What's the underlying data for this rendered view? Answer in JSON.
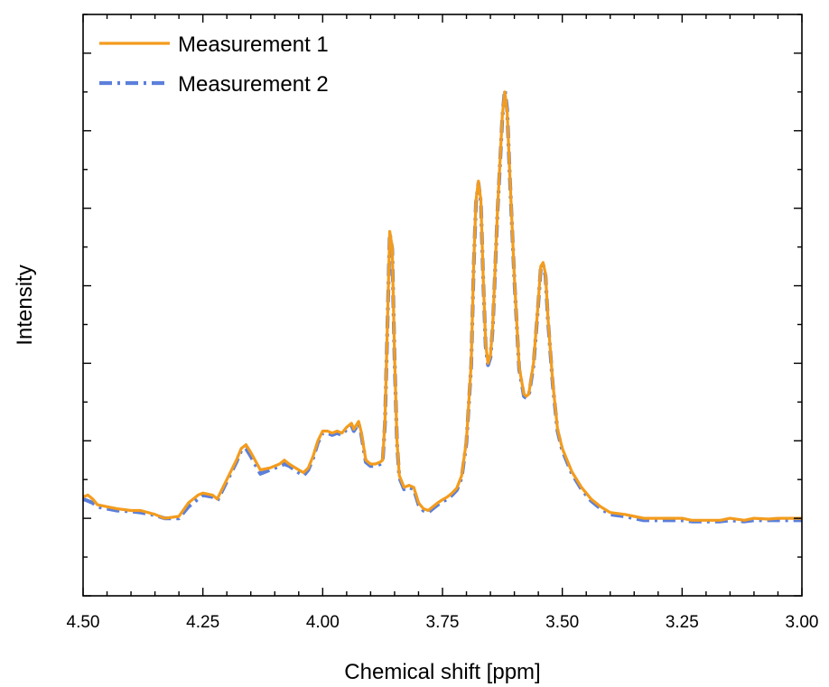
{
  "chart_data": {
    "type": "line",
    "title": "",
    "xlabel": "Chemical shift [ppm]",
    "ylabel": "Intensity",
    "xlim": [
      4.5,
      3.0
    ],
    "x_reversed": true,
    "ylim": [
      -0.2,
      1.3
    ],
    "x_ticks": [
      "4.50",
      "4.25",
      "4.00",
      "3.75",
      "3.50",
      "3.25",
      "3.00"
    ],
    "y_tick_labels_shown": false,
    "grid": false,
    "legend_position": "top-left",
    "series": [
      {
        "name": "Measurement 1",
        "color": "#f39c1e",
        "style": "solid",
        "points": [
          [
            4.5,
            0.055
          ],
          [
            4.49,
            0.06
          ],
          [
            4.48,
            0.05
          ],
          [
            4.47,
            0.035
          ],
          [
            4.45,
            0.03
          ],
          [
            4.43,
            0.025
          ],
          [
            4.4,
            0.02
          ],
          [
            4.38,
            0.02
          ],
          [
            4.35,
            0.01
          ],
          [
            4.33,
            0.0
          ],
          [
            4.3,
            0.005
          ],
          [
            4.28,
            0.04
          ],
          [
            4.26,
            0.06
          ],
          [
            4.25,
            0.065
          ],
          [
            4.23,
            0.06
          ],
          [
            4.22,
            0.05
          ],
          [
            4.2,
            0.1
          ],
          [
            4.18,
            0.15
          ],
          [
            4.17,
            0.18
          ],
          [
            4.16,
            0.19
          ],
          [
            4.15,
            0.17
          ],
          [
            4.13,
            0.125
          ],
          [
            4.11,
            0.13
          ],
          [
            4.09,
            0.14
          ],
          [
            4.08,
            0.15
          ],
          [
            4.07,
            0.14
          ],
          [
            4.05,
            0.125
          ],
          [
            4.04,
            0.118
          ],
          [
            4.03,
            0.13
          ],
          [
            4.02,
            0.16
          ],
          [
            4.01,
            0.2
          ],
          [
            4.0,
            0.225
          ],
          [
            3.99,
            0.225
          ],
          [
            3.98,
            0.22
          ],
          [
            3.97,
            0.225
          ],
          [
            3.96,
            0.22
          ],
          [
            3.95,
            0.235
          ],
          [
            3.94,
            0.245
          ],
          [
            3.935,
            0.23
          ],
          [
            3.925,
            0.25
          ],
          [
            3.92,
            0.225
          ],
          [
            3.91,
            0.15
          ],
          [
            3.9,
            0.14
          ],
          [
            3.89,
            0.14
          ],
          [
            3.88,
            0.145
          ],
          [
            3.875,
            0.15
          ],
          [
            3.87,
            0.25
          ],
          [
            3.865,
            0.5
          ],
          [
            3.86,
            0.74
          ],
          [
            3.855,
            0.7
          ],
          [
            3.85,
            0.42
          ],
          [
            3.845,
            0.2
          ],
          [
            3.84,
            0.11
          ],
          [
            3.83,
            0.08
          ],
          [
            3.82,
            0.085
          ],
          [
            3.81,
            0.08
          ],
          [
            3.8,
            0.04
          ],
          [
            3.79,
            0.025
          ],
          [
            3.78,
            0.02
          ],
          [
            3.77,
            0.03
          ],
          [
            3.76,
            0.04
          ],
          [
            3.75,
            0.048
          ],
          [
            3.74,
            0.055
          ],
          [
            3.73,
            0.065
          ],
          [
            3.72,
            0.078
          ],
          [
            3.71,
            0.11
          ],
          [
            3.7,
            0.2
          ],
          [
            3.69,
            0.4
          ],
          [
            3.685,
            0.65
          ],
          [
            3.68,
            0.82
          ],
          [
            3.675,
            0.87
          ],
          [
            3.67,
            0.82
          ],
          [
            3.665,
            0.62
          ],
          [
            3.66,
            0.45
          ],
          [
            3.655,
            0.4
          ],
          [
            3.65,
            0.42
          ],
          [
            3.645,
            0.5
          ],
          [
            3.64,
            0.65
          ],
          [
            3.635,
            0.8
          ],
          [
            3.63,
            0.92
          ],
          [
            3.625,
            1.04
          ],
          [
            3.62,
            1.1
          ],
          [
            3.615,
            1.05
          ],
          [
            3.61,
            0.9
          ],
          [
            3.6,
            0.62
          ],
          [
            3.59,
            0.39
          ],
          [
            3.58,
            0.32
          ],
          [
            3.575,
            0.315
          ],
          [
            3.57,
            0.32
          ],
          [
            3.56,
            0.4
          ],
          [
            3.55,
            0.56
          ],
          [
            3.545,
            0.65
          ],
          [
            3.54,
            0.66
          ],
          [
            3.535,
            0.63
          ],
          [
            3.53,
            0.52
          ],
          [
            3.52,
            0.35
          ],
          [
            3.51,
            0.23
          ],
          [
            3.5,
            0.18
          ],
          [
            3.48,
            0.12
          ],
          [
            3.46,
            0.08
          ],
          [
            3.44,
            0.05
          ],
          [
            3.42,
            0.03
          ],
          [
            3.4,
            0.015
          ],
          [
            3.37,
            0.01
          ],
          [
            3.35,
            0.005
          ],
          [
            3.33,
            0.0
          ],
          [
            3.3,
            0.0
          ],
          [
            3.27,
            0.0
          ],
          [
            3.25,
            0.0
          ],
          [
            3.23,
            -0.005
          ],
          [
            3.2,
            -0.005
          ],
          [
            3.17,
            -0.005
          ],
          [
            3.15,
            0.0
          ],
          [
            3.12,
            -0.005
          ],
          [
            3.1,
            0.0
          ],
          [
            3.07,
            -0.002
          ],
          [
            3.05,
            0.0
          ],
          [
            3.03,
            0.0
          ],
          [
            3.0,
            0.0
          ]
        ]
      },
      {
        "name": "Measurement 2",
        "color": "#5b7fdb",
        "style": "dash-dot",
        "points": [
          [
            4.5,
            0.05
          ],
          [
            4.49,
            0.045
          ],
          [
            4.48,
            0.04
          ],
          [
            4.47,
            0.03
          ],
          [
            4.45,
            0.025
          ],
          [
            4.43,
            0.02
          ],
          [
            4.4,
            0.018
          ],
          [
            4.38,
            0.015
          ],
          [
            4.35,
            0.008
          ],
          [
            4.33,
            0.0
          ],
          [
            4.3,
            0.0
          ],
          [
            4.28,
            0.03
          ],
          [
            4.26,
            0.05
          ],
          [
            4.25,
            0.06
          ],
          [
            4.23,
            0.055
          ],
          [
            4.22,
            0.045
          ],
          [
            4.2,
            0.095
          ],
          [
            4.18,
            0.145
          ],
          [
            4.17,
            0.175
          ],
          [
            4.16,
            0.18
          ],
          [
            4.15,
            0.16
          ],
          [
            4.13,
            0.115
          ],
          [
            4.11,
            0.125
          ],
          [
            4.09,
            0.135
          ],
          [
            4.08,
            0.14
          ],
          [
            4.07,
            0.135
          ],
          [
            4.05,
            0.118
          ],
          [
            4.04,
            0.11
          ],
          [
            4.03,
            0.125
          ],
          [
            4.02,
            0.155
          ],
          [
            4.01,
            0.195
          ],
          [
            4.0,
            0.22
          ],
          [
            3.99,
            0.22
          ],
          [
            3.98,
            0.215
          ],
          [
            3.97,
            0.22
          ],
          [
            3.96,
            0.215
          ],
          [
            3.95,
            0.23
          ],
          [
            3.94,
            0.24
          ],
          [
            3.935,
            0.225
          ],
          [
            3.925,
            0.245
          ],
          [
            3.92,
            0.22
          ],
          [
            3.91,
            0.145
          ],
          [
            3.9,
            0.135
          ],
          [
            3.89,
            0.135
          ],
          [
            3.88,
            0.14
          ],
          [
            3.875,
            0.145
          ],
          [
            3.87,
            0.245
          ],
          [
            3.865,
            0.495
          ],
          [
            3.86,
            0.735
          ],
          [
            3.855,
            0.695
          ],
          [
            3.85,
            0.415
          ],
          [
            3.845,
            0.195
          ],
          [
            3.84,
            0.105
          ],
          [
            3.83,
            0.075
          ],
          [
            3.82,
            0.08
          ],
          [
            3.81,
            0.075
          ],
          [
            3.8,
            0.035
          ],
          [
            3.79,
            0.02
          ],
          [
            3.78,
            0.015
          ],
          [
            3.77,
            0.025
          ],
          [
            3.76,
            0.035
          ],
          [
            3.75,
            0.043
          ],
          [
            3.74,
            0.05
          ],
          [
            3.73,
            0.06
          ],
          [
            3.72,
            0.073
          ],
          [
            3.71,
            0.105
          ],
          [
            3.7,
            0.195
          ],
          [
            3.69,
            0.395
          ],
          [
            3.685,
            0.645
          ],
          [
            3.68,
            0.815
          ],
          [
            3.675,
            0.865
          ],
          [
            3.67,
            0.815
          ],
          [
            3.665,
            0.615
          ],
          [
            3.66,
            0.445
          ],
          [
            3.655,
            0.395
          ],
          [
            3.65,
            0.415
          ],
          [
            3.645,
            0.495
          ],
          [
            3.64,
            0.645
          ],
          [
            3.635,
            0.795
          ],
          [
            3.63,
            0.915
          ],
          [
            3.625,
            1.035
          ],
          [
            3.62,
            1.105
          ],
          [
            3.615,
            1.055
          ],
          [
            3.61,
            0.895
          ],
          [
            3.6,
            0.615
          ],
          [
            3.59,
            0.385
          ],
          [
            3.58,
            0.315
          ],
          [
            3.575,
            0.31
          ],
          [
            3.57,
            0.315
          ],
          [
            3.56,
            0.395
          ],
          [
            3.55,
            0.555
          ],
          [
            3.545,
            0.645
          ],
          [
            3.54,
            0.655
          ],
          [
            3.535,
            0.625
          ],
          [
            3.53,
            0.515
          ],
          [
            3.52,
            0.345
          ],
          [
            3.51,
            0.225
          ],
          [
            3.5,
            0.175
          ],
          [
            3.48,
            0.115
          ],
          [
            3.46,
            0.075
          ],
          [
            3.44,
            0.045
          ],
          [
            3.42,
            0.025
          ],
          [
            3.4,
            0.01
          ],
          [
            3.37,
            0.005
          ],
          [
            3.35,
            0.0
          ],
          [
            3.33,
            -0.005
          ],
          [
            3.3,
            -0.005
          ],
          [
            3.27,
            -0.005
          ],
          [
            3.25,
            -0.005
          ],
          [
            3.23,
            -0.008
          ],
          [
            3.2,
            -0.008
          ],
          [
            3.17,
            -0.008
          ],
          [
            3.15,
            -0.005
          ],
          [
            3.12,
            -0.008
          ],
          [
            3.1,
            -0.005
          ],
          [
            3.07,
            -0.005
          ],
          [
            3.05,
            -0.005
          ],
          [
            3.03,
            -0.005
          ],
          [
            3.0,
            -0.005
          ]
        ]
      }
    ]
  }
}
